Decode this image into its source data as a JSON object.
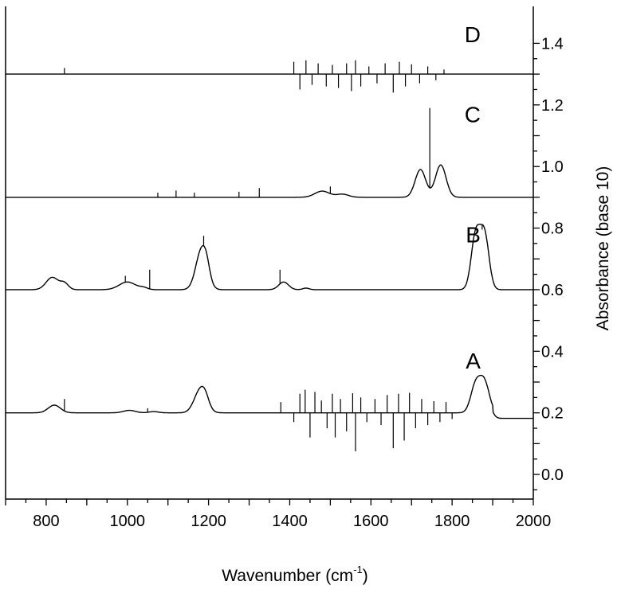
{
  "chart_data": {
    "type": "line",
    "title": "",
    "xlabel": "Wavenumber (cm",
    "xlabel_sup": "-1",
    "xlabel_close": ")",
    "ylabel": "Absorbance (base 10)",
    "y_axis_side": "right",
    "xlim": [
      700,
      2000
    ],
    "ylim": [
      -0.08,
      1.52
    ],
    "x_ticks": [
      800,
      1000,
      1200,
      1400,
      1600,
      1800,
      2000
    ],
    "y_ticks": [
      0.0,
      0.2,
      0.4,
      0.6,
      0.8,
      1.0,
      1.2,
      1.4
    ],
    "y_tick_labels": [
      "0.0",
      "0.2",
      "0.4",
      "0.6",
      "0.8",
      "1.0",
      "1.2",
      "1.4"
    ],
    "grid": false,
    "line_color": "#000000",
    "series": [
      {
        "name": "A",
        "label_at": [
          1890,
          0.37
        ],
        "baseline": 0.2,
        "tail": [
          {
            "x": 1900,
            "y": 0.182
          }
        ],
        "bands": [
          {
            "center": 820,
            "width": 15,
            "height": 0.025
          },
          {
            "center": 1005,
            "width": 15,
            "height": 0.008
          },
          {
            "center": 1065,
            "width": 12,
            "height": 0.004
          },
          {
            "center": 1180,
            "width": 15,
            "height": 0.075
          },
          {
            "center": 1192,
            "width": 9,
            "height": 0.02
          },
          {
            "center": 1858,
            "width": 12,
            "height": 0.09
          },
          {
            "center": 1880,
            "width": 12,
            "height": 0.095
          }
        ],
        "spikes": [
          {
            "x": 845,
            "y": 0.245
          },
          {
            "x": 1050,
            "y": 0.215
          },
          {
            "x": 1378,
            "y": 0.235
          },
          {
            "x": 1410,
            "y": 0.17
          },
          {
            "x": 1425,
            "y": 0.262
          },
          {
            "x": 1438,
            "y": 0.275
          },
          {
            "x": 1450,
            "y": 0.12
          },
          {
            "x": 1462,
            "y": 0.268
          },
          {
            "x": 1478,
            "y": 0.24
          },
          {
            "x": 1492,
            "y": 0.15
          },
          {
            "x": 1505,
            "y": 0.262
          },
          {
            "x": 1512,
            "y": 0.12
          },
          {
            "x": 1525,
            "y": 0.245
          },
          {
            "x": 1540,
            "y": 0.14
          },
          {
            "x": 1555,
            "y": 0.264
          },
          {
            "x": 1562,
            "y": 0.075
          },
          {
            "x": 1575,
            "y": 0.25
          },
          {
            "x": 1590,
            "y": 0.17
          },
          {
            "x": 1610,
            "y": 0.245
          },
          {
            "x": 1625,
            "y": 0.16
          },
          {
            "x": 1640,
            "y": 0.258
          },
          {
            "x": 1655,
            "y": 0.085
          },
          {
            "x": 1668,
            "y": 0.262
          },
          {
            "x": 1682,
            "y": 0.11
          },
          {
            "x": 1695,
            "y": 0.265
          },
          {
            "x": 1710,
            "y": 0.15
          },
          {
            "x": 1725,
            "y": 0.245
          },
          {
            "x": 1740,
            "y": 0.16
          },
          {
            "x": 1755,
            "y": 0.238
          },
          {
            "x": 1770,
            "y": 0.17
          },
          {
            "x": 1785,
            "y": 0.235
          },
          {
            "x": 1800,
            "y": 0.18
          }
        ]
      },
      {
        "name": "B",
        "label_at": [
          1890,
          0.78
        ],
        "baseline": 0.6,
        "tail": [],
        "bands": [
          {
            "center": 815,
            "width": 15,
            "height": 0.04
          },
          {
            "center": 845,
            "width": 10,
            "height": 0.02
          },
          {
            "center": 1000,
            "width": 20,
            "height": 0.025
          },
          {
            "center": 1040,
            "width": 10,
            "height": 0.006
          },
          {
            "center": 1183,
            "width": 14,
            "height": 0.13
          },
          {
            "center": 1195,
            "width": 8,
            "height": 0.03
          },
          {
            "center": 1385,
            "width": 12,
            "height": 0.025
          },
          {
            "center": 1440,
            "width": 8,
            "height": 0.005
          },
          {
            "center": 1858,
            "width": 11,
            "height": 0.175
          },
          {
            "center": 1880,
            "width": 11,
            "height": 0.175
          }
        ],
        "spikes": [
          {
            "x": 995,
            "y": 0.645
          },
          {
            "x": 1055,
            "y": 0.665
          },
          {
            "x": 1188,
            "y": 0.775
          },
          {
            "x": 1376,
            "y": 0.665
          },
          {
            "x": 1874,
            "y": 0.795
          }
        ]
      },
      {
        "name": "C",
        "label_at": [
          1890,
          1.17
        ],
        "baseline": 0.9,
        "tail": [],
        "bands": [
          {
            "center": 1480,
            "width": 18,
            "height": 0.02
          },
          {
            "center": 1530,
            "width": 15,
            "height": 0.01
          },
          {
            "center": 1722,
            "width": 13,
            "height": 0.09
          },
          {
            "center": 1772,
            "width": 13,
            "height": 0.105
          }
        ],
        "spikes": [
          {
            "x": 1075,
            "y": 0.915
          },
          {
            "x": 1120,
            "y": 0.922
          },
          {
            "x": 1165,
            "y": 0.915
          },
          {
            "x": 1275,
            "y": 0.918
          },
          {
            "x": 1325,
            "y": 0.93
          },
          {
            "x": 1500,
            "y": 0.935
          },
          {
            "x": 1745,
            "y": 1.19
          }
        ]
      },
      {
        "name": "D",
        "label_at": [
          1890,
          1.43
        ],
        "baseline": 1.3,
        "tail": [],
        "bands": [],
        "spikes": [
          {
            "x": 845,
            "y": 1.32
          },
          {
            "x": 1410,
            "y": 1.34
          },
          {
            "x": 1425,
            "y": 1.25
          },
          {
            "x": 1440,
            "y": 1.345
          },
          {
            "x": 1455,
            "y": 1.265
          },
          {
            "x": 1470,
            "y": 1.335
          },
          {
            "x": 1490,
            "y": 1.26
          },
          {
            "x": 1505,
            "y": 1.33
          },
          {
            "x": 1520,
            "y": 1.255
          },
          {
            "x": 1540,
            "y": 1.335
          },
          {
            "x": 1552,
            "y": 1.245
          },
          {
            "x": 1562,
            "y": 1.345
          },
          {
            "x": 1575,
            "y": 1.26
          },
          {
            "x": 1595,
            "y": 1.325
          },
          {
            "x": 1615,
            "y": 1.27
          },
          {
            "x": 1635,
            "y": 1.335
          },
          {
            "x": 1655,
            "y": 1.24
          },
          {
            "x": 1670,
            "y": 1.34
          },
          {
            "x": 1685,
            "y": 1.26
          },
          {
            "x": 1700,
            "y": 1.332
          },
          {
            "x": 1720,
            "y": 1.27
          },
          {
            "x": 1740,
            "y": 1.325
          },
          {
            "x": 1760,
            "y": 1.28
          },
          {
            "x": 1780,
            "y": 1.315
          }
        ]
      }
    ]
  }
}
